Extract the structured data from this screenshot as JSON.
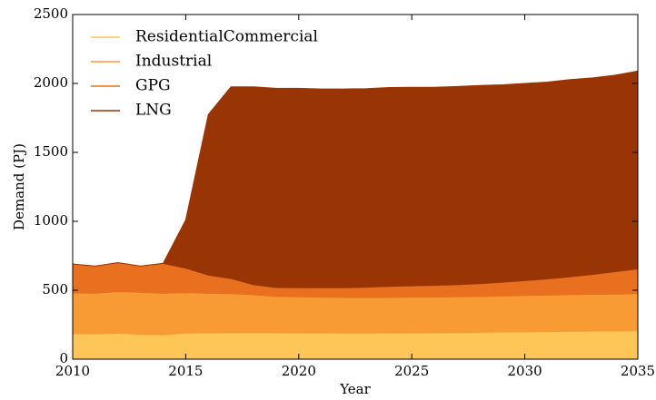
{
  "chart_data": {
    "type": "stacked_area",
    "x_label": "Year",
    "y_label": "Demand (PJ)",
    "x": [
      2010,
      2011,
      2012,
      2013,
      2014,
      2015,
      2016,
      2017,
      2018,
      2019,
      2020,
      2021,
      2022,
      2023,
      2024,
      2025,
      2026,
      2027,
      2028,
      2029,
      2030,
      2031,
      2032,
      2033,
      2034,
      2035
    ],
    "series": [
      {
        "name": "ResidentialCommercial",
        "color": "#fec557",
        "values": [
          185,
          183,
          188,
          180,
          178,
          188,
          190,
          192,
          192,
          192,
          190,
          190,
          188,
          188,
          190,
          190,
          192,
          193,
          195,
          197,
          198,
          200,
          202,
          203,
          205,
          207
        ]
      },
      {
        "name": "Industrial",
        "color": "#f99b35",
        "values": [
          295,
          295,
          302,
          305,
          300,
          294,
          288,
          283,
          276,
          263,
          262,
          260,
          260,
          260,
          258,
          260,
          258,
          259,
          260,
          261,
          264,
          265,
          266,
          267,
          267,
          268
        ]
      },
      {
        "name": "GPG",
        "color": "#e8701f",
        "values": [
          210,
          197,
          210,
          190,
          217,
          178,
          132,
          110,
          72,
          65,
          66,
          68,
          70,
          74,
          80,
          82,
          85,
          88,
          93,
          100,
          108,
          117,
          130,
          145,
          163,
          180
        ]
      },
      {
        "name": "LNG",
        "color": "#993404",
        "values": [
          0,
          0,
          0,
          0,
          0,
          350,
          1165,
          1390,
          1435,
          1445,
          1447,
          1442,
          1442,
          1440,
          1442,
          1440,
          1437,
          1438,
          1437,
          1432,
          1430,
          1428,
          1430,
          1425,
          1425,
          1435
        ]
      }
    ],
    "xlim": [
      2010,
      2035
    ],
    "xticks": [
      2010,
      2015,
      2020,
      2025,
      2030,
      2035
    ],
    "ylim": [
      0,
      2500
    ],
    "yticks": [
      0,
      500,
      1000,
      1500,
      2000,
      2500
    ],
    "legend": "upper left"
  }
}
